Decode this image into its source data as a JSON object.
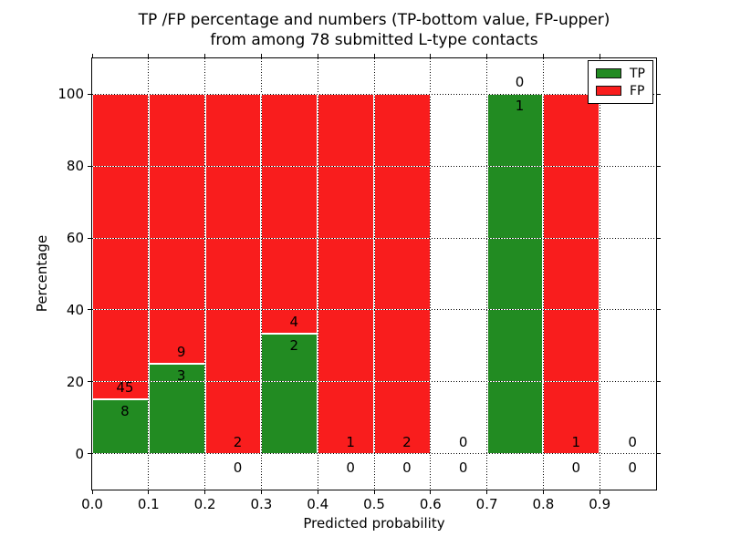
{
  "title": {
    "line1": "TP /FP percentage and numbers (TP-bottom value, FP-upper)",
    "line2": "from among 78 submitted L-type contacts"
  },
  "axes": {
    "xlabel": "Predicted probability",
    "ylabel": "Percentage"
  },
  "legend": {
    "position": "upper right",
    "entries": [
      {
        "label": "TP",
        "color": "#228b22"
      },
      {
        "label": "FP",
        "color": "#f91d1d"
      }
    ]
  },
  "chart_data": {
    "type": "bar",
    "stacked": true,
    "title": "TP /FP percentage and numbers (TP-bottom value, FP-upper) from among 78 submitted L-type contacts",
    "xlabel": "Predicted probability",
    "ylabel": "Percentage",
    "xlim": [
      0.0,
      1.0
    ],
    "ylim": [
      -10,
      110
    ],
    "xticks": [
      "0.0",
      "0.1",
      "0.2",
      "0.3",
      "0.4",
      "0.5",
      "0.6",
      "0.7",
      "0.8",
      "0.9"
    ],
    "yticks": [
      "0",
      "20",
      "40",
      "60",
      "80",
      "100"
    ],
    "grid": "dotted",
    "legend_position": "upper right",
    "colors": {
      "tp": "#228b22",
      "fp": "#f91d1d"
    },
    "total_contacts": 78,
    "bins": [
      {
        "x_range": [
          0.0,
          0.1
        ],
        "tp": 8,
        "fp": 45,
        "tp_pct": 15.1
      },
      {
        "x_range": [
          0.1,
          0.2
        ],
        "tp": 3,
        "fp": 9,
        "tp_pct": 25.0
      },
      {
        "x_range": [
          0.2,
          0.3
        ],
        "tp": 0,
        "fp": 2,
        "tp_pct": 0.0
      },
      {
        "x_range": [
          0.3,
          0.4
        ],
        "tp": 2,
        "fp": 4,
        "tp_pct": 33.3
      },
      {
        "x_range": [
          0.4,
          0.5
        ],
        "tp": 0,
        "fp": 1,
        "tp_pct": 0.0
      },
      {
        "x_range": [
          0.5,
          0.6
        ],
        "tp": 0,
        "fp": 2,
        "tp_pct": 0.0
      },
      {
        "x_range": [
          0.6,
          0.7
        ],
        "tp": 0,
        "fp": 0,
        "tp_pct": null
      },
      {
        "x_range": [
          0.7,
          0.8
        ],
        "tp": 1,
        "fp": 0,
        "tp_pct": 100.0
      },
      {
        "x_range": [
          0.8,
          0.9
        ],
        "tp": 0,
        "fp": 1,
        "tp_pct": 0.0
      },
      {
        "x_range": [
          0.9,
          1.0
        ],
        "tp": 0,
        "fp": 0,
        "tp_pct": null
      }
    ]
  }
}
